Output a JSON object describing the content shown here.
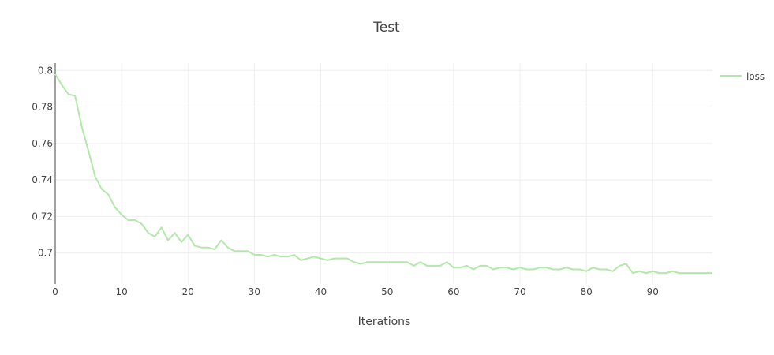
{
  "chart_data": {
    "type": "line",
    "title": "Test",
    "xlabel": "Iterations",
    "ylabel": "",
    "xlim": [
      0,
      99
    ],
    "ylim": [
      0.683,
      0.804
    ],
    "x_ticks": [
      0,
      10,
      20,
      30,
      40,
      50,
      60,
      70,
      80,
      90
    ],
    "y_ticks": [
      0.7,
      0.72,
      0.74,
      0.76,
      0.78,
      0.8
    ],
    "x_tick_labels": [
      "0",
      "10",
      "20",
      "30",
      "40",
      "50",
      "60",
      "70",
      "80",
      "90"
    ],
    "y_tick_labels": [
      "0.7",
      "0.72",
      "0.74",
      "0.76",
      "0.78",
      "0.8"
    ],
    "grid": true,
    "legend_position": "top-right",
    "series": [
      {
        "name": "loss",
        "color": "#b2e8a9",
        "x": [
          0,
          1,
          2,
          3,
          4,
          5,
          6,
          7,
          8,
          9,
          10,
          11,
          12,
          13,
          14,
          15,
          16,
          17,
          18,
          19,
          20,
          21,
          22,
          23,
          24,
          25,
          26,
          27,
          28,
          29,
          30,
          31,
          32,
          33,
          34,
          35,
          36,
          37,
          38,
          39,
          40,
          41,
          42,
          43,
          44,
          45,
          46,
          47,
          48,
          49,
          50,
          51,
          52,
          53,
          54,
          55,
          56,
          57,
          58,
          59,
          60,
          61,
          62,
          63,
          64,
          65,
          66,
          67,
          68,
          69,
          70,
          71,
          72,
          73,
          74,
          75,
          76,
          77,
          78,
          79,
          80,
          81,
          82,
          83,
          84,
          85,
          86,
          87,
          88,
          89,
          90,
          91,
          92,
          93,
          94,
          95,
          96,
          97,
          98,
          99
        ],
        "values": [
          0.798,
          0.792,
          0.787,
          0.786,
          0.769,
          0.756,
          0.742,
          0.735,
          0.732,
          0.725,
          0.721,
          0.718,
          0.718,
          0.716,
          0.711,
          0.709,
          0.714,
          0.707,
          0.711,
          0.706,
          0.71,
          0.704,
          0.703,
          0.703,
          0.702,
          0.707,
          0.703,
          0.701,
          0.701,
          0.701,
          0.699,
          0.699,
          0.698,
          0.699,
          0.698,
          0.698,
          0.699,
          0.696,
          0.697,
          0.698,
          0.697,
          0.696,
          0.697,
          0.697,
          0.697,
          0.695,
          0.694,
          0.695,
          0.695,
          0.695,
          0.695,
          0.695,
          0.695,
          0.695,
          0.693,
          0.695,
          0.693,
          0.693,
          0.693,
          0.695,
          0.692,
          0.692,
          0.693,
          0.691,
          0.693,
          0.693,
          0.691,
          0.692,
          0.692,
          0.691,
          0.692,
          0.691,
          0.691,
          0.692,
          0.692,
          0.691,
          0.691,
          0.692,
          0.691,
          0.691,
          0.69,
          0.692,
          0.691,
          0.691,
          0.69,
          0.693,
          0.694,
          0.689,
          0.69,
          0.689,
          0.69,
          0.689,
          0.689,
          0.69,
          0.689,
          0.689,
          0.689,
          0.689,
          0.689,
          0.689
        ]
      }
    ]
  }
}
